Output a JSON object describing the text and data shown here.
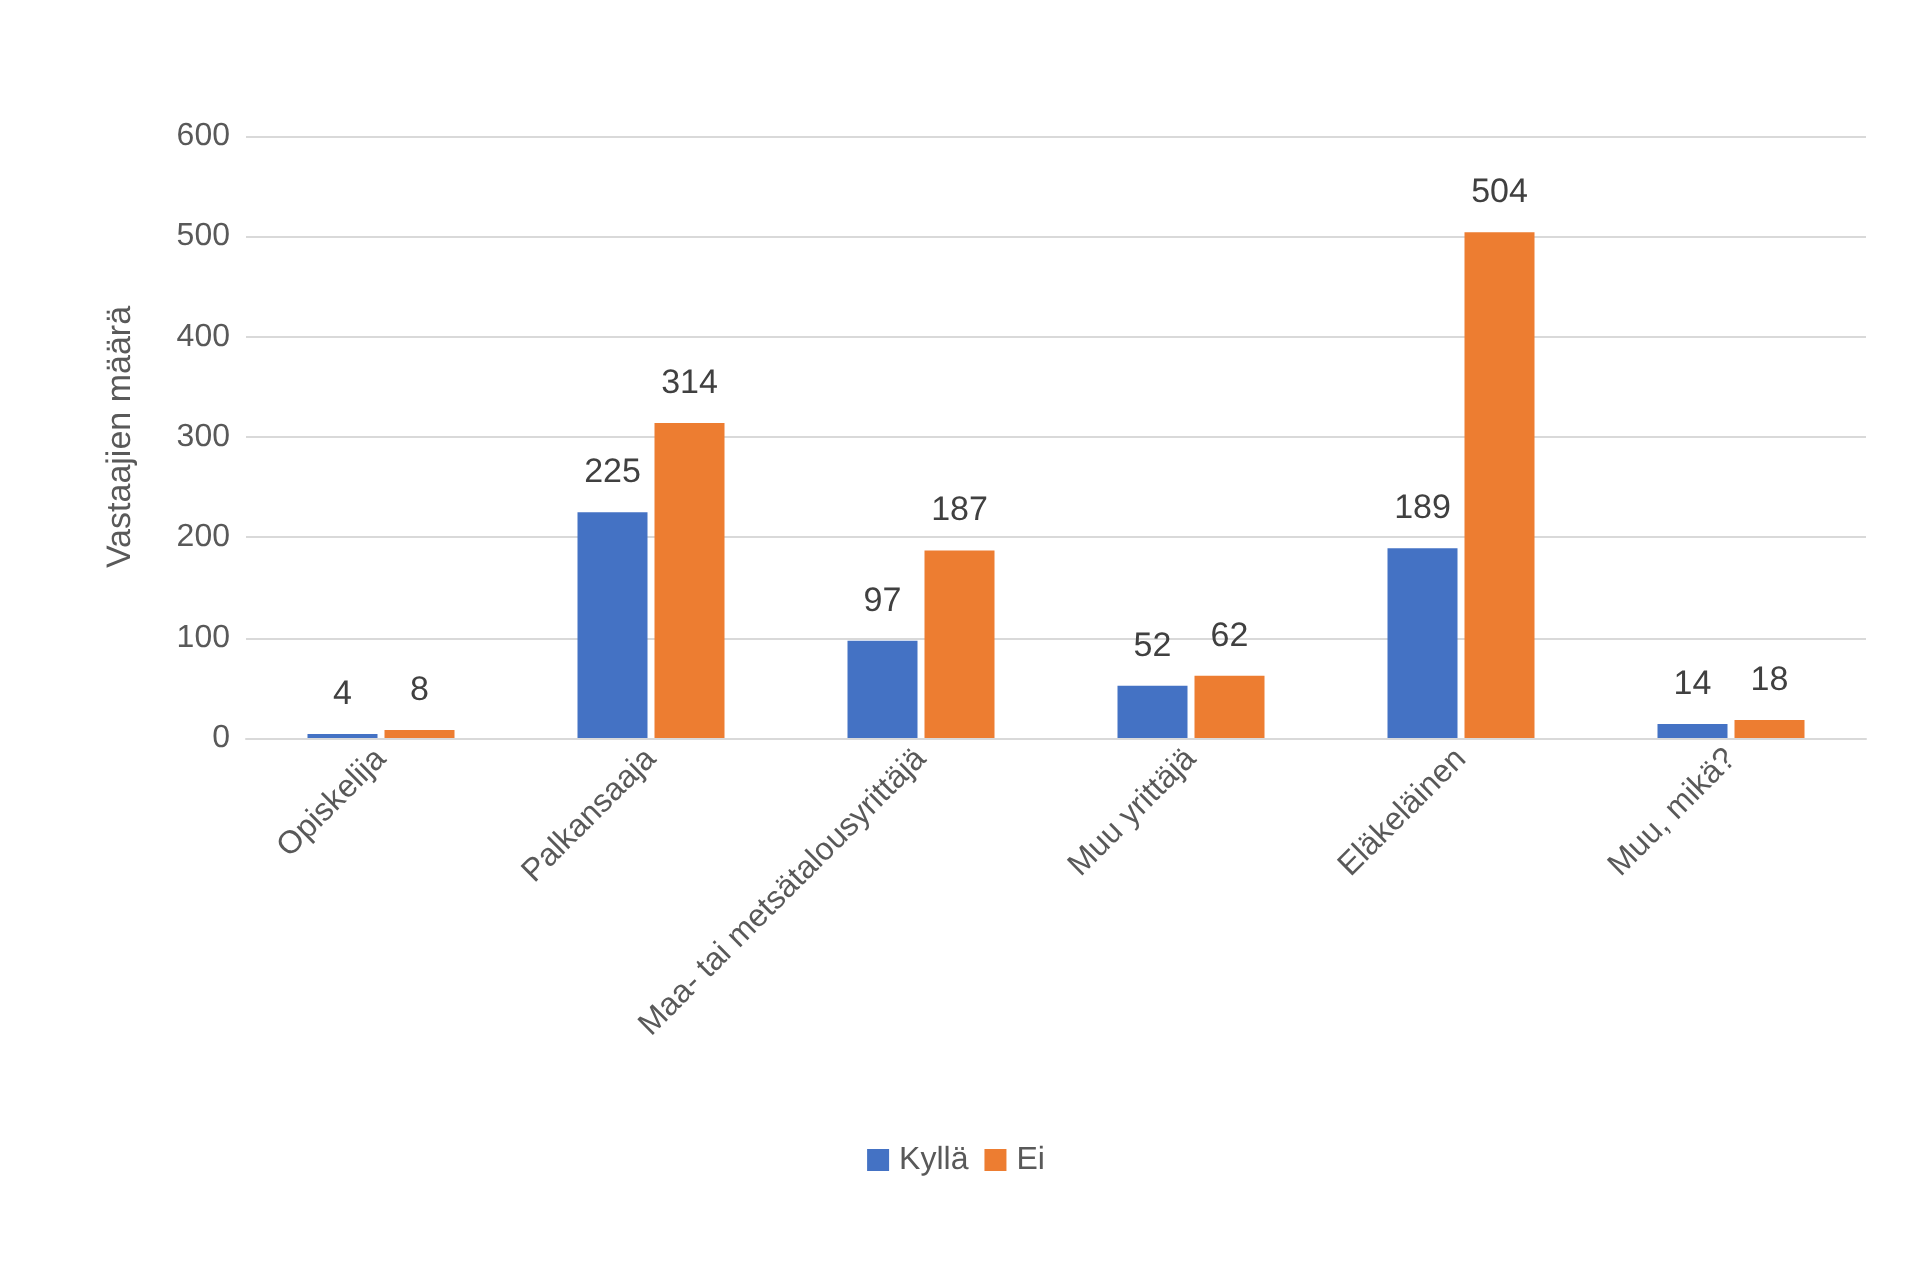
{
  "chart_data": {
    "type": "bar",
    "ylabel": "Vastaajien määrä",
    "categories": [
      "Opiskelija",
      "Palkansaaja",
      "Maa- tai metsätalousyrittäjä",
      "Muu yrittäjä",
      "Eläkeläinen",
      "Muu, mikä?"
    ],
    "series": [
      {
        "name": "Kyllä",
        "color": "#4472c4",
        "values": [
          4,
          225,
          97,
          52,
          189,
          14
        ]
      },
      {
        "name": "Ei",
        "color": "#ed7d31",
        "values": [
          8,
          314,
          187,
          62,
          504,
          18
        ]
      }
    ],
    "ylim": [
      0,
      600
    ],
    "yticks": [
      0,
      100,
      200,
      300,
      400,
      500,
      600
    ],
    "grid": "y",
    "legend": "bottom",
    "data_labels": true
  }
}
